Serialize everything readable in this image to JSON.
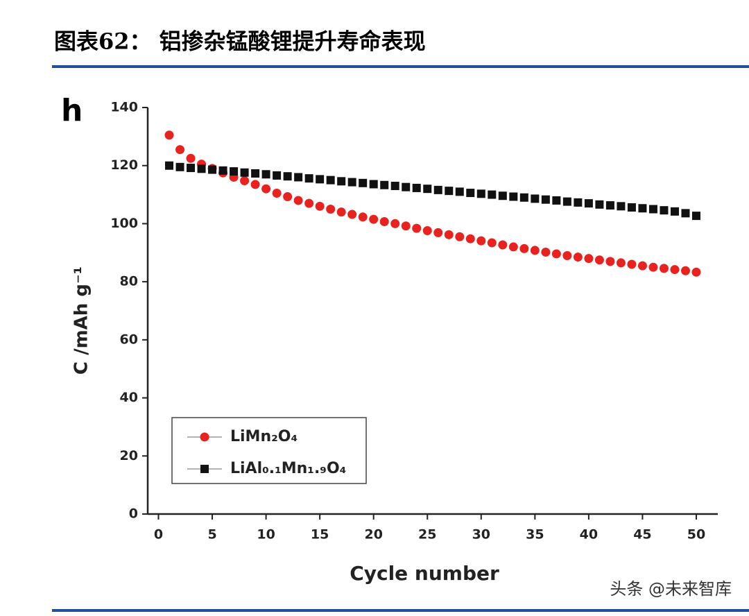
{
  "chart_data": {
    "type": "scatter",
    "title": "图表62：  铝掺杂锰酸锂提升寿命表现",
    "panel_label": "h",
    "xlabel": "Cycle number",
    "ylabel": "C /mAh g⁻¹",
    "watermark": "头条 @未来智库",
    "x": [
      1,
      2,
      3,
      4,
      5,
      6,
      7,
      8,
      9,
      10,
      11,
      12,
      13,
      14,
      15,
      16,
      17,
      18,
      19,
      20,
      21,
      22,
      23,
      24,
      25,
      26,
      27,
      28,
      29,
      30,
      31,
      32,
      33,
      34,
      35,
      36,
      37,
      38,
      39,
      40,
      41,
      42,
      43,
      44,
      45,
      46,
      47,
      48,
      49,
      50
    ],
    "series": [
      {
        "name": "LiMn₂O₄",
        "color": "#e8231f",
        "marker": "circle",
        "values": [
          130.5,
          125.5,
          122.5,
          120.5,
          119,
          117.5,
          116,
          114.8,
          113.5,
          112,
          110.5,
          109.3,
          108,
          107,
          106,
          105,
          104,
          103.2,
          102.3,
          101.5,
          100.7,
          100,
          99.2,
          98.4,
          97.6,
          96.9,
          96.2,
          95.5,
          94.8,
          94.1,
          93.4,
          92.7,
          92,
          91.4,
          90.8,
          90.2,
          89.6,
          89,
          88.5,
          88,
          87.5,
          87,
          86.5,
          86,
          85.5,
          85,
          84.6,
          84.2,
          83.8,
          83.3
        ]
      },
      {
        "name": "LiAl₀.₁Mn₁.₉O₄",
        "color": "#111111",
        "marker": "square",
        "values": [
          120,
          119.5,
          119.2,
          118.9,
          118.6,
          118.3,
          118,
          117.6,
          117.3,
          117,
          116.6,
          116.3,
          116,
          115.6,
          115.3,
          115,
          114.6,
          114.3,
          114,
          113.6,
          113.3,
          113,
          112.6,
          112.3,
          112,
          111.6,
          111.3,
          111,
          110.6,
          110.3,
          110,
          109.6,
          109.3,
          109,
          108.6,
          108.3,
          108,
          107.6,
          107.3,
          107,
          106.6,
          106.3,
          106,
          105.6,
          105.3,
          105,
          104.6,
          104.2,
          103.6,
          102.7
        ]
      }
    ],
    "xlim": [
      -1,
      52
    ],
    "xticks": [
      0,
      5,
      10,
      15,
      20,
      25,
      30,
      35,
      40,
      45,
      50
    ],
    "ylim": [
      0,
      140
    ],
    "yticks": [
      0,
      20,
      40,
      60,
      80,
      100,
      120,
      140
    ],
    "legend": "lower left"
  }
}
